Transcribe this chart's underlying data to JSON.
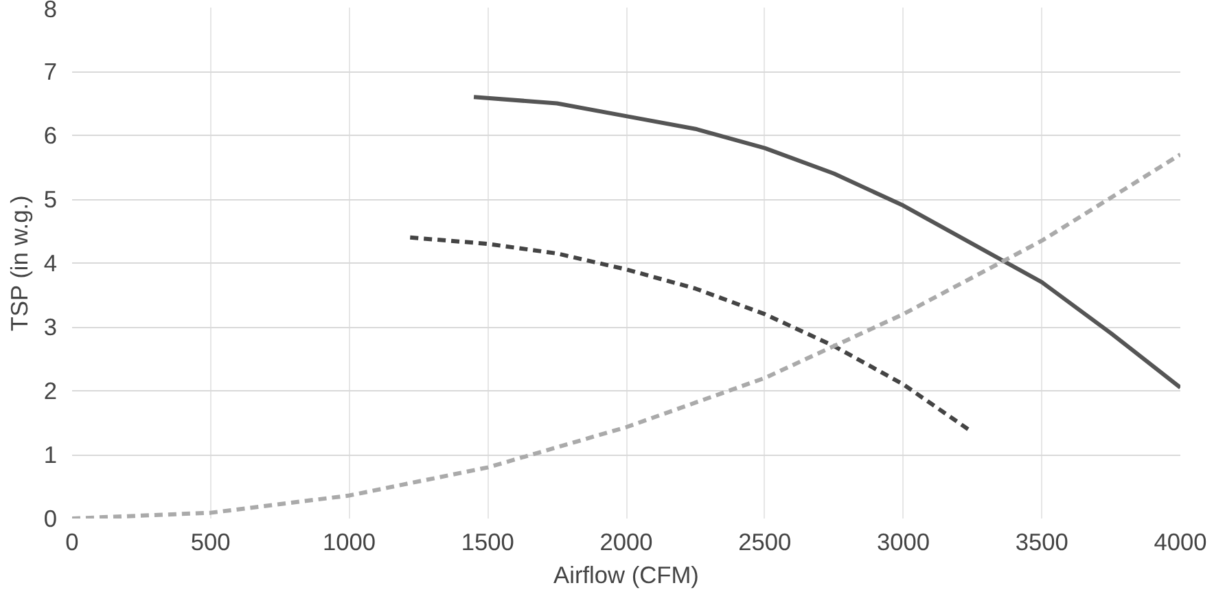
{
  "chart_data": {
    "type": "line",
    "xlabel": "Airflow (CFM)",
    "ylabel": "TSP (in w.g.)",
    "xlim": [
      0,
      4000
    ],
    "ylim": [
      0,
      8
    ],
    "xticks": [
      0,
      500,
      1000,
      1500,
      2000,
      2500,
      3000,
      3500,
      4000
    ],
    "yticks": [
      0,
      1,
      2,
      3,
      4,
      5,
      6,
      7,
      8
    ],
    "grid": true,
    "series": [
      {
        "color": "#555555",
        "line_style": "solid",
        "x": [
          1450,
          1750,
          2000,
          2250,
          2500,
          2750,
          3000,
          3250,
          3500,
          3750,
          4000
        ],
        "values": [
          6.6,
          6.5,
          6.3,
          6.1,
          5.8,
          5.4,
          4.9,
          4.3,
          3.7,
          2.9,
          2.05
        ]
      },
      {
        "color": "#444444",
        "line_style": "dashed",
        "x": [
          1220,
          1500,
          1750,
          2000,
          2250,
          2500,
          2750,
          3000,
          3250
        ],
        "values": [
          4.4,
          4.3,
          4.15,
          3.9,
          3.6,
          3.2,
          2.7,
          2.1,
          1.35
        ]
      },
      {
        "color": "#aaaaaa",
        "line_style": "dashed",
        "x": [
          0,
          500,
          1000,
          1500,
          2000,
          2500,
          3000,
          3500,
          4000
        ],
        "values": [
          0,
          0.09,
          0.36,
          0.8,
          1.43,
          2.2,
          3.2,
          4.35,
          5.7
        ]
      }
    ]
  }
}
